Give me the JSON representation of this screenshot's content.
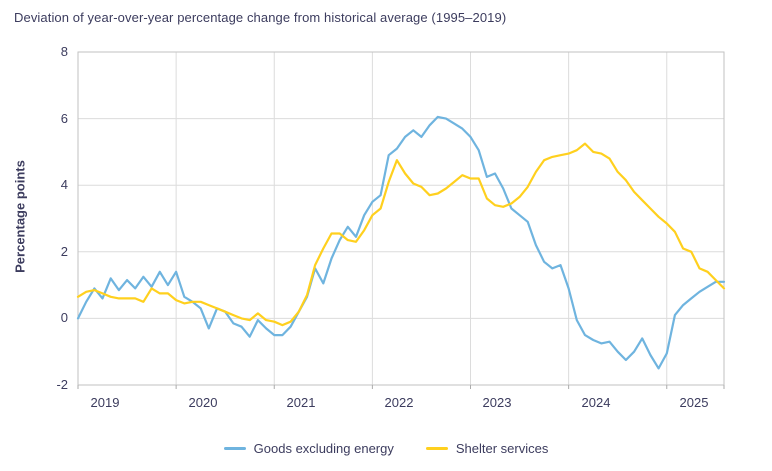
{
  "title": "Deviation of year-over-year percentage change from historical average (1995–2019)",
  "colors": {
    "text": "#3C3C5E",
    "grid": "#DCDCDC",
    "border": "#C2C2C2",
    "tick": "#ABABAB",
    "goods_blue": "#6FB4DF",
    "shelter_yellow": "#FFD01E"
  },
  "chart_data": {
    "type": "line",
    "title": "Deviation of year-over-year percentage change from historical average (1995–2019)",
    "ylabel": "Percentage points",
    "xlabel": "",
    "ylim": [
      -2,
      8
    ],
    "ytick_step": 2,
    "yticklabels": [
      "8",
      "6",
      "4",
      "2",
      "0",
      "-2"
    ],
    "xticklabels": [
      "2019",
      "2020",
      "2021",
      "2022",
      "2023",
      "2024",
      "2025"
    ],
    "x_unit": "month",
    "x_start": "2019-01",
    "x_end": "2025-08",
    "grid": true,
    "legend_position": "bottom",
    "series": [
      {
        "name": "Goods excluding energy",
        "color": "#6FB4DF",
        "values": [
          0.0,
          0.5,
          0.9,
          0.6,
          1.2,
          0.85,
          1.15,
          0.9,
          1.25,
          0.95,
          1.4,
          1.0,
          1.4,
          0.65,
          0.5,
          0.3,
          -0.3,
          0.3,
          0.2,
          -0.15,
          -0.25,
          -0.55,
          -0.05,
          -0.3,
          -0.5,
          -0.5,
          -0.25,
          0.2,
          0.65,
          1.5,
          1.05,
          1.8,
          2.35,
          2.75,
          2.45,
          3.1,
          3.5,
          3.7,
          4.9,
          5.1,
          5.45,
          5.65,
          5.45,
          5.8,
          6.05,
          6.0,
          5.85,
          5.7,
          5.45,
          5.05,
          4.25,
          4.35,
          3.9,
          3.3,
          3.1,
          2.9,
          2.2,
          1.7,
          1.5,
          1.6,
          0.9,
          -0.05,
          -0.5,
          -0.65,
          -0.75,
          -0.7,
          -1.0,
          -1.25,
          -1.0,
          -0.6,
          -1.1,
          -1.5,
          -1.05,
          0.1,
          0.4,
          0.6,
          0.8,
          0.95,
          1.1,
          1.1
        ]
      },
      {
        "name": "Shelter services",
        "color": "#FFD01E",
        "values": [
          0.65,
          0.8,
          0.85,
          0.75,
          0.65,
          0.6,
          0.6,
          0.6,
          0.5,
          0.9,
          0.75,
          0.75,
          0.55,
          0.45,
          0.5,
          0.5,
          0.4,
          0.3,
          0.2,
          0.1,
          0.0,
          -0.05,
          0.15,
          -0.05,
          -0.1,
          -0.2,
          -0.1,
          0.2,
          0.7,
          1.6,
          2.1,
          2.55,
          2.55,
          2.35,
          2.3,
          2.65,
          3.1,
          3.3,
          4.1,
          4.75,
          4.35,
          4.05,
          3.95,
          3.7,
          3.75,
          3.9,
          4.1,
          4.3,
          4.2,
          4.2,
          3.6,
          3.4,
          3.35,
          3.45,
          3.65,
          3.95,
          4.4,
          4.75,
          4.85,
          4.9,
          4.95,
          5.05,
          5.25,
          5.0,
          4.95,
          4.8,
          4.4,
          4.15,
          3.8,
          3.55,
          3.3,
          3.05,
          2.85,
          2.6,
          2.1,
          2.0,
          1.5,
          1.4,
          1.15,
          0.9
        ]
      }
    ]
  }
}
